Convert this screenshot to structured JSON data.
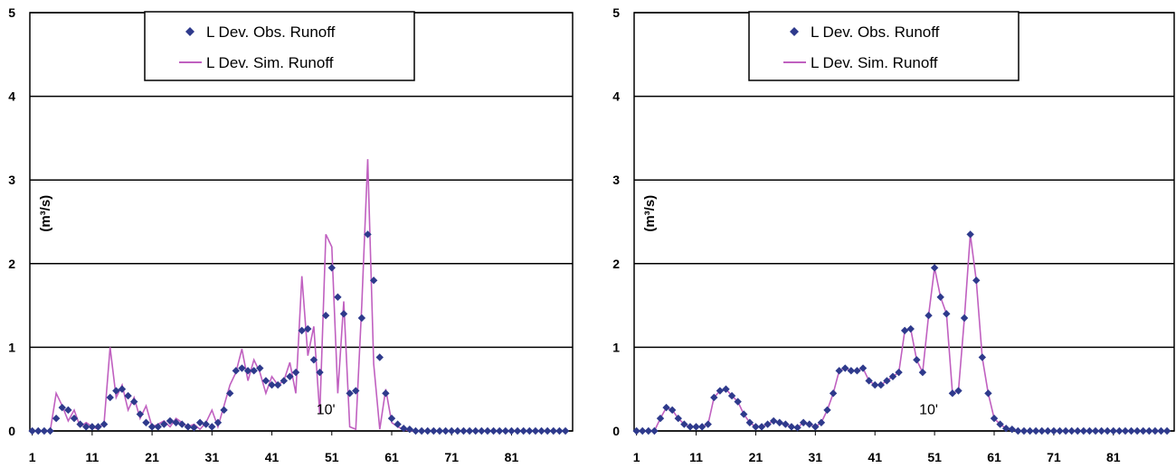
{
  "chart_data": [
    {
      "type": "line",
      "ylabel": "(m³/s)",
      "ylim": [
        0,
        5
      ],
      "xlim": [
        1,
        90
      ],
      "yticks": [
        "0",
        "1",
        "2",
        "3",
        "4",
        "5"
      ],
      "xticks": [
        "1",
        "11",
        "21",
        "31",
        "41",
        "51",
        "61",
        "71",
        "81"
      ],
      "grid": true,
      "legend": "top-center",
      "annotation": "10'",
      "colors": {
        "obs": "#2e3a8c",
        "sim": "#c060c0"
      },
      "series": [
        {
          "name": "L Dev. Obs. Runoff",
          "kind": "markers",
          "x": [
            1,
            2,
            3,
            4,
            5,
            6,
            7,
            8,
            9,
            10,
            11,
            12,
            13,
            14,
            15,
            16,
            17,
            18,
            19,
            20,
            21,
            22,
            23,
            24,
            25,
            26,
            27,
            28,
            29,
            30,
            31,
            32,
            33,
            34,
            35,
            36,
            37,
            38,
            39,
            40,
            41,
            42,
            43,
            44,
            45,
            46,
            47,
            48,
            49,
            50,
            51,
            52,
            53,
            54,
            55,
            56,
            57,
            58,
            59,
            60,
            61,
            62,
            63,
            64,
            65,
            66,
            67,
            68,
            69,
            70,
            71,
            72,
            73,
            74,
            75,
            76,
            77,
            78,
            79,
            80,
            81,
            82,
            83,
            84,
            85,
            86,
            87,
            88,
            89,
            90
          ],
          "values": [
            0,
            0,
            0,
            0,
            0.15,
            0.28,
            0.25,
            0.15,
            0.08,
            0.05,
            0.05,
            0.05,
            0.08,
            0.4,
            0.48,
            0.5,
            0.42,
            0.35,
            0.2,
            0.1,
            0.05,
            0.05,
            0.08,
            0.12,
            0.1,
            0.08,
            0.05,
            0.04,
            0.1,
            0.08,
            0.05,
            0.1,
            0.25,
            0.45,
            0.72,
            0.75,
            0.72,
            0.72,
            0.75,
            0.6,
            0.55,
            0.55,
            0.6,
            0.65,
            0.7,
            1.2,
            1.22,
            0.85,
            0.7,
            1.38,
            1.95,
            1.6,
            1.4,
            0.45,
            0.48,
            1.35,
            2.35,
            1.8,
            0.88,
            0.45,
            0.15,
            0.08,
            0.03,
            0.02,
            0,
            0,
            0,
            0,
            0,
            0,
            0,
            0,
            0,
            0,
            0,
            0,
            0,
            0,
            0,
            0,
            0,
            0,
            0,
            0,
            0,
            0,
            0,
            0,
            0,
            0
          ]
        },
        {
          "name": "L Dev. Sim. Runoff",
          "kind": "line",
          "x": [
            1,
            2,
            3,
            4,
            5,
            6,
            7,
            8,
            9,
            10,
            11,
            12,
            13,
            14,
            15,
            16,
            17,
            18,
            19,
            20,
            21,
            22,
            23,
            24,
            25,
            26,
            27,
            28,
            29,
            30,
            31,
            32,
            33,
            34,
            35,
            36,
            37,
            38,
            39,
            40,
            41,
            42,
            43,
            44,
            45,
            46,
            47,
            48,
            49,
            50,
            51,
            52,
            53,
            54,
            55,
            56,
            57,
            58,
            59,
            60,
            61,
            62,
            63,
            64,
            65,
            66,
            67,
            68,
            69,
            70,
            71,
            72,
            73,
            74,
            75,
            76,
            77,
            78,
            79,
            80,
            81,
            82,
            83,
            84,
            85,
            86,
            87,
            88,
            89,
            90
          ],
          "values": [
            0,
            0,
            0,
            0,
            0.45,
            0.3,
            0.12,
            0.25,
            0.05,
            0.1,
            0.05,
            0.02,
            0.1,
            1.0,
            0.4,
            0.55,
            0.25,
            0.4,
            0.15,
            0.3,
            0.05,
            0.08,
            0.12,
            0.05,
            0.15,
            0.1,
            0.05,
            0.08,
            0.02,
            0.1,
            0.25,
            0.05,
            0.3,
            0.55,
            0.7,
            0.98,
            0.6,
            0.85,
            0.7,
            0.45,
            0.65,
            0.55,
            0.6,
            0.82,
            0.45,
            1.85,
            0.9,
            1.25,
            0.2,
            2.35,
            2.2,
            0.45,
            1.55,
            0.05,
            0.02,
            1.5,
            3.25,
            0.8,
            0.02,
            0.5,
            0.1,
            0.05,
            0.02,
            0,
            0,
            0,
            0,
            0,
            0,
            0,
            0,
            0,
            0,
            0,
            0,
            0,
            0,
            0,
            0,
            0,
            0,
            0,
            0,
            0,
            0,
            0,
            0,
            0,
            0,
            0
          ]
        }
      ]
    },
    {
      "type": "line",
      "ylabel": "(m³/s)",
      "ylim": [
        0,
        5
      ],
      "xlim": [
        1,
        90
      ],
      "yticks": [
        "0",
        "1",
        "2",
        "3",
        "4",
        "5"
      ],
      "xticks": [
        "1",
        "11",
        "21",
        "31",
        "41",
        "51",
        "61",
        "71",
        "81"
      ],
      "grid": true,
      "legend": "top-center",
      "annotation": "10'",
      "colors": {
        "obs": "#2e3a8c",
        "sim": "#c060c0"
      },
      "series": [
        {
          "name": "L Dev. Obs. Runoff",
          "kind": "markers",
          "x": [
            1,
            2,
            3,
            4,
            5,
            6,
            7,
            8,
            9,
            10,
            11,
            12,
            13,
            14,
            15,
            16,
            17,
            18,
            19,
            20,
            21,
            22,
            23,
            24,
            25,
            26,
            27,
            28,
            29,
            30,
            31,
            32,
            33,
            34,
            35,
            36,
            37,
            38,
            39,
            40,
            41,
            42,
            43,
            44,
            45,
            46,
            47,
            48,
            49,
            50,
            51,
            52,
            53,
            54,
            55,
            56,
            57,
            58,
            59,
            60,
            61,
            62,
            63,
            64,
            65,
            66,
            67,
            68,
            69,
            70,
            71,
            72,
            73,
            74,
            75,
            76,
            77,
            78,
            79,
            80,
            81,
            82,
            83,
            84,
            85,
            86,
            87,
            88,
            89,
            90
          ],
          "values": [
            0,
            0,
            0,
            0,
            0.15,
            0.28,
            0.25,
            0.15,
            0.08,
            0.05,
            0.05,
            0.05,
            0.08,
            0.4,
            0.48,
            0.5,
            0.42,
            0.35,
            0.2,
            0.1,
            0.05,
            0.05,
            0.08,
            0.12,
            0.1,
            0.08,
            0.05,
            0.04,
            0.1,
            0.08,
            0.05,
            0.1,
            0.25,
            0.45,
            0.72,
            0.75,
            0.72,
            0.72,
            0.75,
            0.6,
            0.55,
            0.55,
            0.6,
            0.65,
            0.7,
            1.2,
            1.22,
            0.85,
            0.7,
            1.38,
            1.95,
            1.6,
            1.4,
            0.45,
            0.48,
            1.35,
            2.35,
            1.8,
            0.88,
            0.45,
            0.15,
            0.08,
            0.03,
            0.02,
            0,
            0,
            0,
            0,
            0,
            0,
            0,
            0,
            0,
            0,
            0,
            0,
            0,
            0,
            0,
            0,
            0,
            0,
            0,
            0,
            0,
            0,
            0,
            0,
            0,
            0
          ]
        },
        {
          "name": "L Dev. Sim. Runoff",
          "kind": "line",
          "x": [
            1,
            2,
            3,
            4,
            5,
            6,
            7,
            8,
            9,
            10,
            11,
            12,
            13,
            14,
            15,
            16,
            17,
            18,
            19,
            20,
            21,
            22,
            23,
            24,
            25,
            26,
            27,
            28,
            29,
            30,
            31,
            32,
            33,
            34,
            35,
            36,
            37,
            38,
            39,
            40,
            41,
            42,
            43,
            44,
            45,
            46,
            47,
            48,
            49,
            50,
            51,
            52,
            53,
            54,
            55,
            56,
            57,
            58,
            59,
            60,
            61,
            62,
            63,
            64,
            65,
            66,
            67,
            68,
            69,
            70,
            71,
            72,
            73,
            74,
            75,
            76,
            77,
            78,
            79,
            80,
            81,
            82,
            83,
            84,
            85,
            86,
            87,
            88,
            89,
            90
          ],
          "values": [
            0,
            0,
            0,
            0,
            0.15,
            0.28,
            0.25,
            0.15,
            0.08,
            0.05,
            0.05,
            0.05,
            0.08,
            0.4,
            0.48,
            0.5,
            0.42,
            0.35,
            0.2,
            0.1,
            0.05,
            0.05,
            0.08,
            0.12,
            0.1,
            0.08,
            0.05,
            0.04,
            0.1,
            0.08,
            0.05,
            0.1,
            0.25,
            0.45,
            0.72,
            0.75,
            0.72,
            0.72,
            0.75,
            0.6,
            0.55,
            0.55,
            0.6,
            0.65,
            0.7,
            1.2,
            1.22,
            0.85,
            0.7,
            1.38,
            1.95,
            1.6,
            1.4,
            0.45,
            0.48,
            1.35,
            2.35,
            1.8,
            0.88,
            0.45,
            0.15,
            0.08,
            0.03,
            0.02,
            0,
            0,
            0,
            0,
            0,
            0,
            0,
            0,
            0,
            0,
            0,
            0,
            0,
            0,
            0,
            0,
            0,
            0,
            0,
            0,
            0,
            0,
            0,
            0,
            0,
            0
          ]
        }
      ]
    }
  ]
}
